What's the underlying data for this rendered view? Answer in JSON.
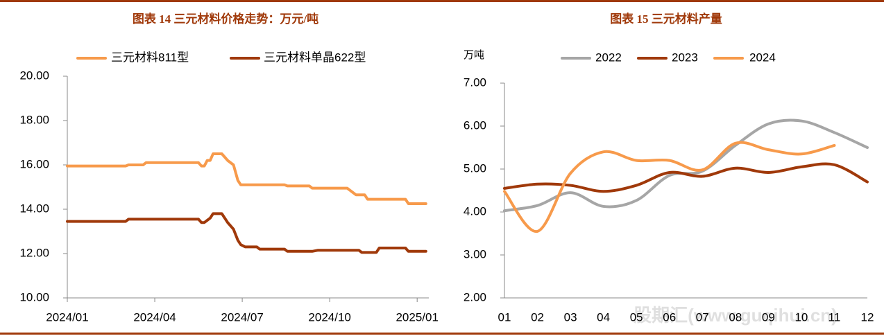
{
  "chart_data": [
    {
      "type": "line",
      "title": "图表 14 三元材料价格走势：万元/吨",
      "x": [
        0,
        2.0,
        2.1,
        2.6,
        2.7,
        4.5,
        4.6,
        4.7,
        4.8,
        4.9,
        5.0,
        5.3,
        5.5,
        5.7,
        5.85,
        5.95,
        6.1,
        6.5,
        6.6,
        7.45,
        7.55,
        8.3,
        8.4,
        8.6,
        9.6,
        9.7,
        9.9,
        10.0,
        10.1,
        10.2,
        10.3,
        10.6,
        10.7,
        11.6,
        11.7,
        12.3
      ],
      "xlim": [
        0,
        12.4
      ],
      "xticks": [
        {
          "value": 0,
          "label": "2024/01"
        },
        {
          "value": 3,
          "label": "2024/04"
        },
        {
          "value": 6,
          "label": "2024/07"
        },
        {
          "value": 9,
          "label": "2024/10"
        },
        {
          "value": 12,
          "label": "2025/01"
        }
      ],
      "ylim": [
        10,
        20
      ],
      "yticks": [
        {
          "value": 10,
          "label": "10.00"
        },
        {
          "value": 12,
          "label": "12.00"
        },
        {
          "value": 14,
          "label": "14.00"
        },
        {
          "value": 16,
          "label": "16.00"
        },
        {
          "value": 18,
          "label": "18.00"
        },
        {
          "value": 20,
          "label": "20.00"
        }
      ],
      "series": [
        {
          "name": "三元材料811型",
          "color": "#f79a4b",
          "values": [
            15.95,
            15.95,
            16.0,
            16.0,
            16.1,
            16.1,
            15.95,
            15.95,
            16.2,
            16.2,
            16.5,
            16.5,
            16.2,
            16.0,
            15.3,
            15.1,
            15.1,
            15.1,
            15.1,
            15.1,
            15.05,
            15.05,
            14.95,
            14.95,
            14.95,
            14.85,
            14.65,
            14.65,
            14.65,
            14.65,
            14.45,
            14.45,
            14.45,
            14.45,
            14.25,
            14.25
          ]
        },
        {
          "name": "三元材料单晶622型",
          "color": "#a0390a",
          "values": [
            13.45,
            13.45,
            13.55,
            13.55,
            13.55,
            13.55,
            13.4,
            13.4,
            13.5,
            13.6,
            13.8,
            13.8,
            13.4,
            13.1,
            12.6,
            12.4,
            12.3,
            12.3,
            12.2,
            12.2,
            12.1,
            12.1,
            12.1,
            12.15,
            12.15,
            12.15,
            12.15,
            12.15,
            12.05,
            12.05,
            12.05,
            12.05,
            12.25,
            12.25,
            12.1,
            12.1
          ]
        }
      ]
    },
    {
      "type": "line",
      "title": "图表 15 三元材料产量",
      "y_label": "万吨",
      "smooth": true,
      "categories": [
        "01",
        "02",
        "03",
        "04",
        "05",
        "06",
        "07",
        "08",
        "09",
        "10",
        "11",
        "12"
      ],
      "ylim": [
        2,
        7
      ],
      "yticks": [
        {
          "value": 2,
          "label": "2.00"
        },
        {
          "value": 3,
          "label": "3.00"
        },
        {
          "value": 4,
          "label": "4.00"
        },
        {
          "value": 5,
          "label": "5.00"
        },
        {
          "value": 6,
          "label": "6.00"
        },
        {
          "value": 7,
          "label": "7.00"
        }
      ],
      "series": [
        {
          "name": "2022",
          "color": "#a6a6a6",
          "values": [
            4.03,
            4.15,
            4.45,
            4.13,
            4.27,
            4.85,
            4.95,
            5.55,
            6.05,
            6.12,
            5.85,
            5.5
          ]
        },
        {
          "name": "2023",
          "color": "#a0390a",
          "values": [
            4.55,
            4.65,
            4.62,
            4.48,
            4.62,
            4.92,
            4.83,
            5.02,
            4.92,
            5.05,
            5.1,
            4.7
          ]
        },
        {
          "name": "2024",
          "color": "#f79a4b",
          "values": [
            4.48,
            3.55,
            4.9,
            5.4,
            5.2,
            5.2,
            4.98,
            5.6,
            5.45,
            5.35,
            5.55,
            null
          ]
        }
      ],
      "watermark": "股期汇(www.guqihui.cn)"
    }
  ]
}
